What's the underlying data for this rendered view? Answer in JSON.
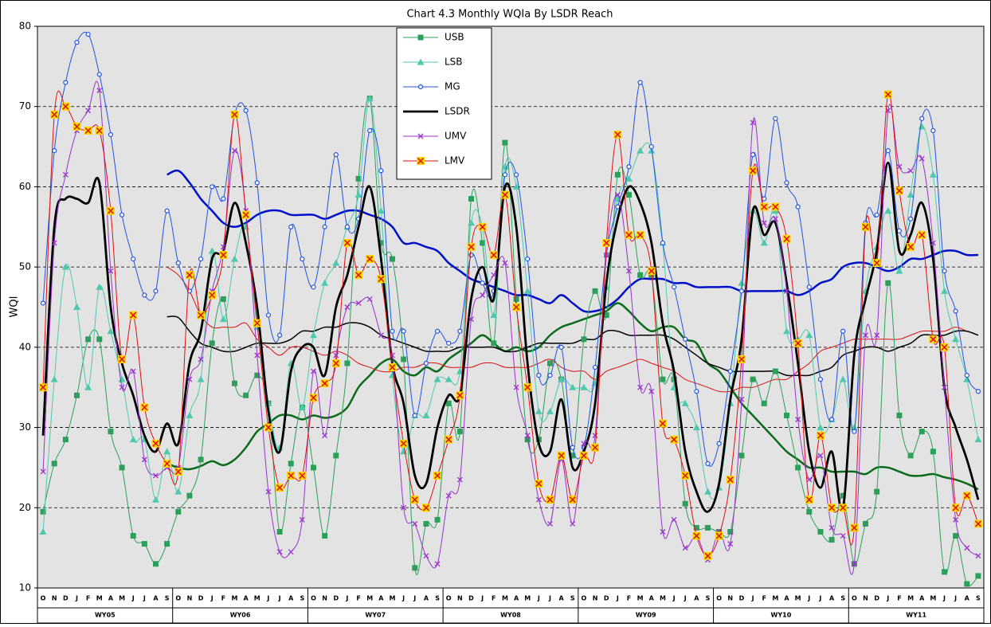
{
  "chart_data": {
    "type": "line",
    "title": "Chart 4.3 Monthly WQIa By LSDR Reach",
    "y_label": "WQI",
    "categories": [
      "O",
      "N",
      "D",
      "J",
      "F",
      "M",
      "A",
      "M",
      "J",
      "J",
      "A",
      "S",
      "O",
      "N",
      "D",
      "J",
      "F",
      "M",
      "A",
      "M",
      "J",
      "J",
      "A",
      "S",
      "O",
      "N",
      "D",
      "J",
      "F",
      "M",
      "A",
      "M",
      "J",
      "J",
      "A",
      "S",
      "O",
      "N",
      "D",
      "J",
      "F",
      "M",
      "A",
      "M",
      "J",
      "J",
      "A",
      "S",
      "O",
      "N",
      "D",
      "J",
      "F",
      "M",
      "A",
      "M",
      "J",
      "J",
      "A",
      "S",
      "O",
      "N",
      "D",
      "J",
      "F",
      "M",
      "A",
      "M",
      "J",
      "J",
      "A",
      "S",
      "O",
      "N",
      "D",
      "J",
      "F",
      "M",
      "A",
      "M",
      "J",
      "J",
      "A",
      "S"
    ],
    "groups": [
      "WY05",
      "WY06",
      "WY07",
      "WY08",
      "WY09",
      "WY10",
      "WY11"
    ],
    "ylim": [
      10,
      80
    ],
    "yticks": [
      10,
      20,
      30,
      40,
      50,
      60,
      70,
      80
    ],
    "grid": true,
    "legend": "top-center",
    "series": [
      {
        "name": "USB",
        "color": "#2ca05a",
        "marker": "square",
        "values": [
          19.5,
          25.5,
          28.5,
          34,
          41,
          41,
          29.5,
          25,
          16.5,
          15.5,
          13,
          15.5,
          19.5,
          21.5,
          26,
          40.5,
          46,
          35.5,
          34,
          36.5,
          33,
          17,
          25.5,
          32.5,
          25,
          16.5,
          26.5,
          38,
          61,
          71,
          53,
          51,
          38.5,
          12.5,
          18,
          18.5,
          33,
          29.5,
          58.5,
          53,
          40.5,
          65.5,
          46,
          28.5,
          28.5,
          38,
          36,
          26.5,
          41,
          47,
          44,
          61.5,
          59,
          49,
          49,
          36,
          36,
          20.5,
          17.5,
          17.5,
          17,
          17,
          26.5,
          36,
          33,
          37,
          31.5,
          25,
          19.5,
          17,
          16,
          21.5,
          13,
          18,
          22,
          48,
          31.5,
          26.5,
          29.5,
          27,
          12,
          16.5,
          10.5,
          11.5
        ]
      },
      {
        "name": "LSB",
        "color": "#4fc9ad",
        "marker": "triangle",
        "values": [
          17,
          36,
          50,
          45,
          35,
          47.5,
          42,
          36,
          28.5,
          28.5,
          21,
          27,
          22,
          31.5,
          36,
          52,
          43.5,
          51,
          55,
          42.5,
          33,
          27.5,
          38,
          32.5,
          41.5,
          48,
          50.5,
          55,
          59,
          71,
          57,
          36.5,
          27,
          31.5,
          31.5,
          36,
          36,
          37,
          55.5,
          55,
          44,
          62.5,
          60,
          47,
          32,
          32,
          36,
          35,
          35,
          35.5,
          47.5,
          58.5,
          61,
          64.5,
          64.5,
          53,
          35,
          33,
          30,
          22,
          22.5,
          33,
          48,
          57,
          53,
          57,
          42,
          41,
          41.5,
          30,
          31,
          36,
          30,
          47,
          52.5,
          57,
          49.5,
          59,
          67.5,
          61.5,
          47,
          41,
          36,
          28.5
        ]
      },
      {
        "name": "MG",
        "color": "#2255dd",
        "marker": "circle",
        "values": [
          45.5,
          64.5,
          73,
          78,
          79,
          74,
          66.5,
          56.5,
          51,
          46.5,
          47,
          57,
          50.5,
          47,
          51,
          60,
          58.5,
          69,
          69.5,
          60.5,
          44,
          41.5,
          55,
          51,
          47.5,
          55,
          64,
          55,
          56,
          67,
          62,
          42,
          42,
          31.5,
          38,
          42,
          40.5,
          42,
          51.5,
          48,
          47,
          61.5,
          61.5,
          51,
          36.5,
          36.5,
          40,
          27.5,
          27.5,
          37.5,
          51.5,
          57.5,
          62.5,
          73,
          65,
          53,
          47.5,
          41,
          34.5,
          25.5,
          28,
          37,
          47,
          64,
          58.5,
          68.5,
          60.5,
          57.5,
          47.5,
          36,
          31,
          42,
          29.5,
          55.5,
          56.5,
          64.5,
          54.5,
          56,
          68.5,
          67,
          49.5,
          44.5,
          36.5,
          34.5
        ]
      },
      {
        "name": "LSDR",
        "color": "#000000",
        "marker": "none",
        "values": [
          29,
          55,
          58.5,
          58.5,
          58,
          60.5,
          45,
          38,
          34,
          29,
          27,
          30.5,
          28,
          38,
          42,
          51,
          52,
          58,
          53,
          45,
          32,
          27,
          37,
          40,
          40,
          36.5,
          45,
          49,
          55,
          60,
          51,
          38,
          33,
          24,
          23,
          30,
          34,
          34,
          46,
          50,
          46,
          60,
          55,
          38,
          28,
          27,
          33.5,
          25,
          27,
          33,
          48,
          56,
          60,
          58,
          53,
          43,
          37,
          27,
          22,
          19.5,
          23,
          33.5,
          41,
          57,
          54,
          55.5,
          48,
          38,
          27,
          22.5,
          27,
          20,
          39,
          46,
          52,
          63,
          52,
          54,
          58,
          51,
          35,
          30,
          26,
          21
        ]
      },
      {
        "name": "UMV",
        "color": "#9933cc",
        "marker": "x",
        "values": [
          24.5,
          53,
          61.5,
          67,
          69.5,
          72,
          49.5,
          35,
          37,
          26,
          24,
          25,
          25,
          36,
          38.5,
          47,
          52.5,
          64.5,
          57,
          39,
          22,
          14.5,
          14.5,
          18.5,
          37,
          29,
          39,
          45,
          45.5,
          46,
          41.5,
          39,
          20,
          18,
          14,
          13,
          21.5,
          23.5,
          43.5,
          46.5,
          49,
          50.5,
          35,
          29,
          21,
          18,
          26,
          18,
          28,
          29,
          51.5,
          59,
          49.5,
          35,
          34.5,
          17,
          18.5,
          15,
          16.5,
          13.5,
          17,
          15.5,
          33.5,
          68,
          55.5,
          56,
          47,
          31,
          23.5,
          26.5,
          17.5,
          16.5,
          13,
          41.5,
          41.5,
          69.5,
          62.5,
          62,
          63.5,
          53,
          35,
          18.5,
          15,
          14
        ]
      },
      {
        "name": "LMV",
        "color": "#dd1111",
        "marker": "boxed-x",
        "values": [
          35,
          69,
          70,
          67.5,
          67,
          67,
          57,
          38.5,
          44,
          32.5,
          28,
          25.5,
          24.5,
          49,
          44,
          46.5,
          51.5,
          69,
          56.5,
          43,
          30,
          22.5,
          24,
          24,
          33.7,
          35.5,
          38,
          53,
          49,
          51,
          48.5,
          37.5,
          28,
          21,
          20,
          24,
          28.5,
          34,
          52.5,
          55,
          51.5,
          59,
          45,
          35,
          23,
          21,
          26.5,
          21,
          26.5,
          27.5,
          53,
          66.5,
          54,
          54,
          49.5,
          30.5,
          28.5,
          24,
          16.5,
          14,
          16.5,
          23.5,
          38.5,
          62,
          57.5,
          57.5,
          53.5,
          40.5,
          21,
          29,
          20,
          20,
          17.5,
          55,
          50.5,
          71.5,
          59.5,
          52.5,
          54,
          41,
          40,
          20,
          21.5,
          18
        ]
      }
    ],
    "trend_lines": [
      {
        "color": "#0010c8",
        "width": 2.5,
        "values": [
          null,
          null,
          null,
          null,
          null,
          null,
          null,
          null,
          null,
          null,
          null,
          61.5,
          62,
          60.5,
          58.5,
          57,
          55.5,
          55,
          55.5,
          56.5,
          57,
          57,
          56.5,
          56.5,
          56.5,
          56,
          56.5,
          57,
          57,
          56.5,
          56,
          55,
          53,
          53,
          52.5,
          52,
          50.5,
          49.5,
          48.5,
          48,
          47.5,
          47,
          46.5,
          46.5,
          46,
          45.5,
          46.5,
          45.5,
          44.5,
          44.5,
          45,
          46,
          47.5,
          48.5,
          48.5,
          48.5,
          48,
          48,
          47.5,
          47.5,
          47.5,
          47.5,
          47,
          47,
          47,
          47,
          47,
          46.5,
          47,
          48,
          48.5,
          50,
          50.5,
          50.5,
          50,
          49.5,
          50,
          51,
          51,
          51.5,
          52,
          52,
          51.5,
          51.5
        ]
      },
      {
        "color": "#0b6b1a",
        "width": 2.5,
        "values": [
          null,
          null,
          null,
          null,
          null,
          null,
          null,
          null,
          null,
          null,
          null,
          25.5,
          25,
          24.8,
          25.2,
          25.8,
          25.3,
          26,
          27.5,
          29.5,
          30.5,
          31.5,
          31.5,
          31,
          31.5,
          31.2,
          31.5,
          32.5,
          35,
          36.5,
          38,
          38.5,
          37,
          36.5,
          37.5,
          37,
          38.5,
          39.5,
          40.5,
          41.5,
          40.5,
          39.5,
          40,
          39.5,
          40,
          41.5,
          42.5,
          43,
          43.5,
          44,
          44.5,
          45.5,
          44.5,
          43,
          42,
          42.5,
          42.5,
          41,
          40.5,
          38,
          37,
          35,
          33,
          31.5,
          30,
          28.5,
          27,
          26,
          25,
          25,
          24.5,
          24.5,
          24.5,
          24.2,
          25,
          25,
          24.5,
          24,
          24,
          24.2,
          23.8,
          23.5,
          23,
          22.3
        ]
      },
      {
        "color": "#dd1111",
        "width": 1,
        "values": [
          null,
          null,
          null,
          null,
          null,
          null,
          null,
          null,
          null,
          null,
          null,
          50,
          49,
          47,
          44,
          42.5,
          42.5,
          42.5,
          43,
          41,
          40,
          39,
          40,
          40,
          39.5,
          39,
          39.5,
          39,
          38,
          37.5,
          37,
          37,
          37.5,
          37.5,
          38,
          38,
          37.5,
          37.5,
          37.5,
          38,
          38,
          37.5,
          37.5,
          37.5,
          38,
          38.5,
          37.5,
          37,
          37,
          36,
          37,
          37.5,
          38,
          38.5,
          38,
          37.5,
          37,
          36,
          35.5,
          35,
          34.5,
          34.5,
          35,
          35,
          35.5,
          36,
          36,
          37,
          38,
          39.5,
          40,
          40.5,
          41,
          41,
          41,
          41,
          41,
          41.5,
          42,
          42,
          42,
          42.5,
          42,
          41.5
        ]
      },
      {
        "color": "#000000",
        "width": 1.5,
        "values": [
          null,
          null,
          null,
          null,
          null,
          null,
          null,
          null,
          null,
          null,
          null,
          43.8,
          43.7,
          42,
          40.5,
          40,
          39.5,
          39.5,
          40,
          40.5,
          40.5,
          40.5,
          41,
          42,
          42,
          42.5,
          42.5,
          43,
          43,
          42.5,
          41.5,
          41,
          40.5,
          40,
          39.5,
          39.5,
          39.5,
          40,
          40,
          40,
          40,
          39.5,
          39.5,
          40,
          40.5,
          40.5,
          40.5,
          40.5,
          41,
          41,
          42,
          42,
          41.5,
          41.5,
          41.5,
          41.5,
          41,
          40,
          39,
          38,
          37.5,
          37,
          37,
          37,
          37,
          37,
          36.5,
          36.5,
          36.5,
          37,
          37.5,
          39,
          39.5,
          40,
          40,
          39.5,
          40,
          40.5,
          41.5,
          41.5,
          41.5,
          42,
          42,
          41.5
        ]
      }
    ]
  }
}
